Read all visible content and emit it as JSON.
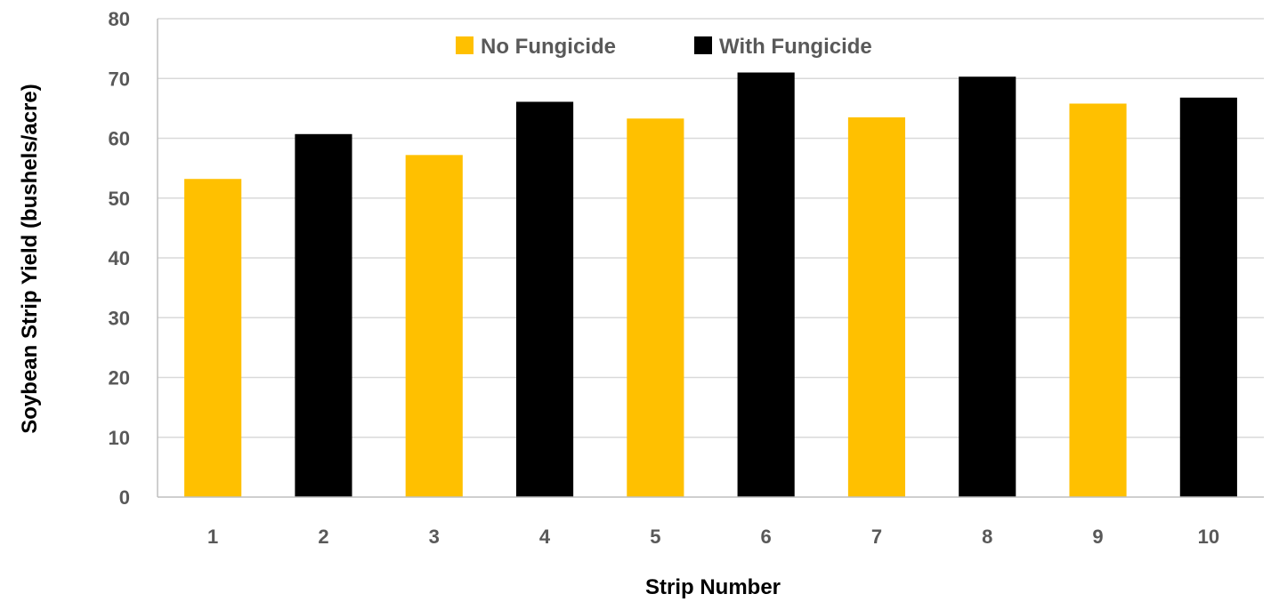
{
  "chart_data": {
    "type": "bar",
    "xlabel": "Strip Number",
    "ylabel": "Soybean Strip Yield (bushels/acre)",
    "ylim": [
      0,
      80
    ],
    "yticks": [
      0,
      10,
      20,
      30,
      40,
      50,
      60,
      70,
      80
    ],
    "grid": true,
    "legend_position": "top-center",
    "categories": [
      "1",
      "2",
      "3",
      "4",
      "5",
      "6",
      "7",
      "8",
      "9",
      "10"
    ],
    "values": [
      53.2,
      60.7,
      57.2,
      66.1,
      63.3,
      71.0,
      63.5,
      70.3,
      65.8,
      66.8
    ],
    "bar_series": [
      "No Fungicide",
      "With Fungicide",
      "No Fungicide",
      "With Fungicide",
      "No Fungicide",
      "With Fungicide",
      "No Fungicide",
      "With Fungicide",
      "No Fungicide",
      "With Fungicide"
    ],
    "series": [
      {
        "name": "No Fungicide",
        "color": "#FFC000"
      },
      {
        "name": "With Fungicide",
        "color": "#000000"
      }
    ]
  },
  "colors": {
    "gridline": "#D9D9D9",
    "axis": "#BFBFBF",
    "tick_text": "#595959"
  }
}
